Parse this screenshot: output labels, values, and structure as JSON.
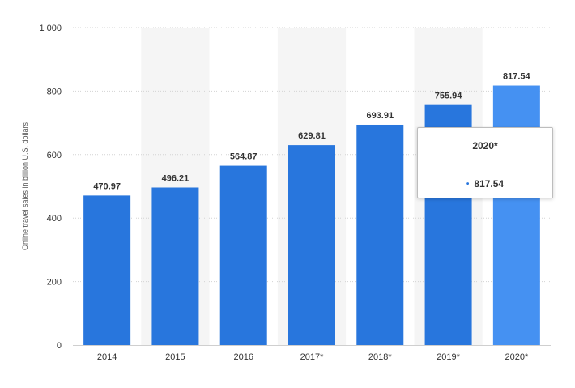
{
  "chart_data": {
    "type": "bar",
    "categories": [
      "2014",
      "2015",
      "2016",
      "2017*",
      "2018*",
      "2019*",
      "2020*"
    ],
    "values": [
      470.97,
      496.21,
      564.87,
      629.81,
      693.91,
      755.94,
      817.54
    ],
    "value_labels": [
      "470.97",
      "496.21",
      "564.87",
      "629.81",
      "693.91",
      "755.94",
      "817.54"
    ],
    "ylabel": "Online travel sales in billion U.S. dollars",
    "ylim": [
      0,
      1000
    ],
    "yticks": [
      0,
      200,
      400,
      600,
      800,
      1000
    ],
    "ytick_labels": [
      "0",
      "200",
      "400",
      "600",
      "800",
      "1 000"
    ],
    "grid": true,
    "highlighted_index": 6,
    "colors": {
      "bar": "#2876dd",
      "bar_highlight": "#4591f2",
      "band": "#f5f5f5",
      "grid": "#d3d3d3"
    }
  },
  "tooltip": {
    "title": "2020*",
    "value": "817.54",
    "marker": "•"
  }
}
